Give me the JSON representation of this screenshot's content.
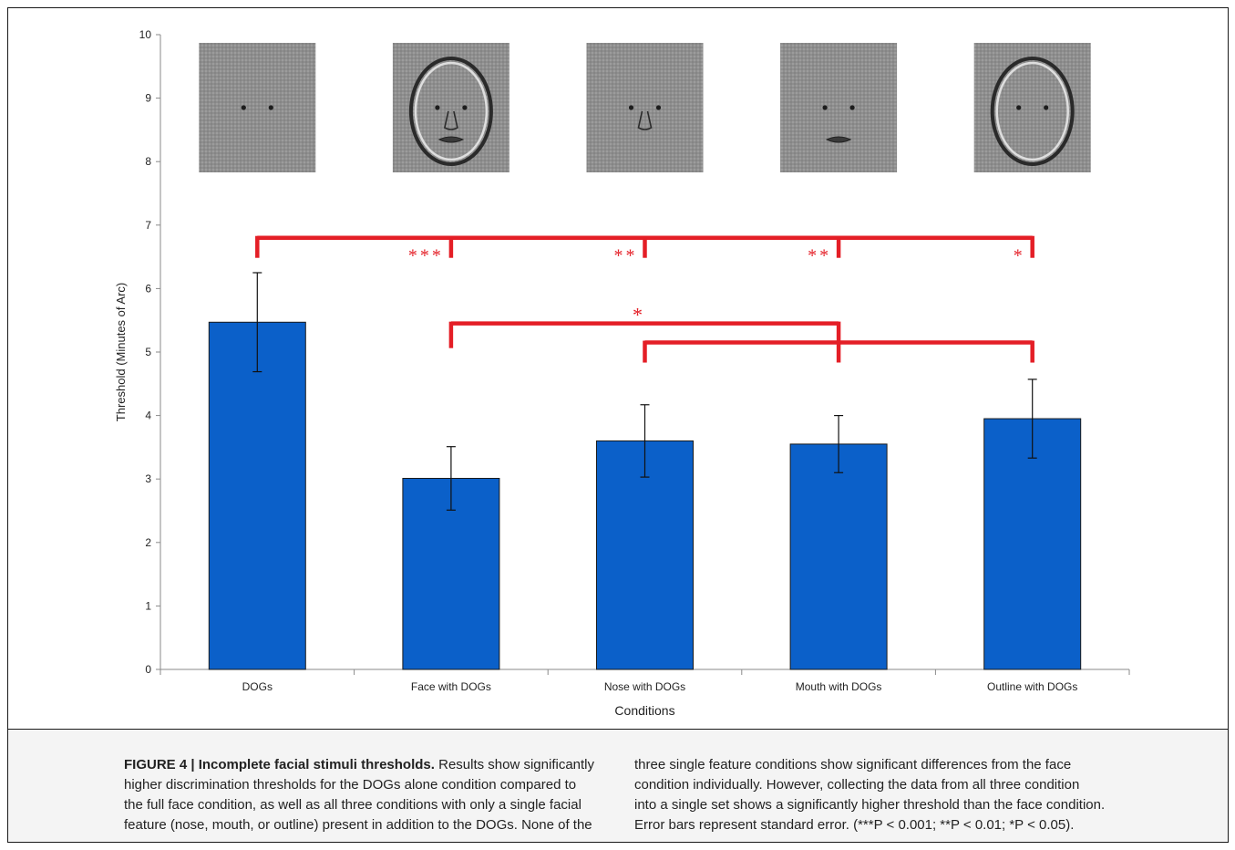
{
  "chart_data": {
    "type": "bar",
    "categories": [
      "DOGs",
      "Face with DOGs",
      "Nose with DOGs",
      "Mouth with DOGs",
      "Outline with DOGs"
    ],
    "values": [
      5.47,
      3.01,
      3.6,
      3.55,
      3.95
    ],
    "error": [
      0.78,
      0.5,
      0.57,
      0.45,
      0.62
    ],
    "xlabel": "Conditions",
    "ylabel": "Threshold (Minutes of Arc)",
    "ylim": [
      0,
      10
    ],
    "yticks": [
      "0",
      "1",
      "2",
      "3",
      "4",
      "5",
      "6",
      "7",
      "8",
      "9",
      "10"
    ],
    "grid": false,
    "bar_color": "#0b60c9",
    "significance": {
      "color": "#e41e26",
      "top_bracket": {
        "y": 6.8,
        "from": 0,
        "to": [
          1,
          2,
          3,
          4
        ],
        "stars": [
          "***",
          "**",
          "**",
          "*"
        ]
      },
      "lower_bracket": {
        "y1": 5.45,
        "y2": 5.15,
        "from_a": 1,
        "from_b": 2,
        "via": 3,
        "to": 4,
        "stars": "*"
      }
    },
    "stimuli": [
      "eyes-only",
      "full-face",
      "eyes-nose",
      "eyes-mouth",
      "eyes-outline"
    ]
  },
  "caption": {
    "title": "FIGURE 4 | Incomplete facial stimuli thresholds.",
    "left_lines": [
      " Results show significantly",
      "higher discrimination thresholds for the DOGs alone condition compared to",
      "the full face condition, as well as all three conditions with only a single facial",
      "feature (nose, mouth, or outline) present in addition to the DOGs. None of the"
    ],
    "right_lines": [
      "three single feature conditions show significant differences from the face",
      "condition individually. However, collecting the data from all three condition",
      "into a single set shows a significantly higher threshold than the face condition.",
      "Error bars represent standard error. (***P < 0.001; **P < 0.01; *P < 0.05)."
    ]
  }
}
